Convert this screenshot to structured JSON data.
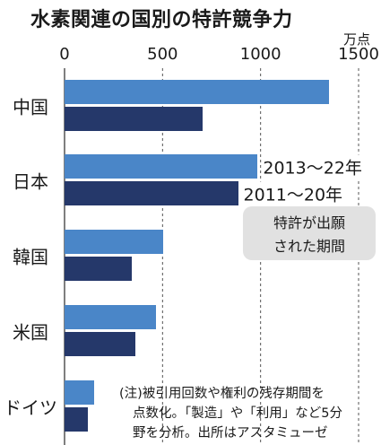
{
  "title": "水素関連の国別の特許競争力",
  "unit": "万点",
  "legend_box": [
    "特許が出願",
    "された期間"
  ],
  "note": [
    "(注)被引用回数や権利の残存期間を",
    "点数化。「製造」や「利用」など5分",
    "野を分析。出所はアスタミューゼ"
  ],
  "colors": {
    "series_2013_2022": "#4a86c8",
    "series_2011_2020": "#25386a",
    "grid": "#555555"
  },
  "chart_data": {
    "type": "bar",
    "orientation": "horizontal",
    "title": "水素関連の国別の特許競争力",
    "unit": "万点",
    "categories": [
      "中国",
      "日本",
      "韓国",
      "米国",
      "ドイツ"
    ],
    "series": [
      {
        "name": "2013～22年",
        "values": [
          1350,
          985,
          505,
          465,
          150
        ]
      },
      {
        "name": "2011～20年",
        "values": [
          705,
          885,
          345,
          360,
          120
        ]
      }
    ],
    "xlim": [
      0,
      1500
    ],
    "xticks": [
      0,
      500,
      1000,
      1500
    ],
    "xtick_labels": [
      "0",
      "500",
      "1000",
      "1500"
    ],
    "grid": "vertical dashed",
    "legend": "inline labels next to Japan bars"
  }
}
